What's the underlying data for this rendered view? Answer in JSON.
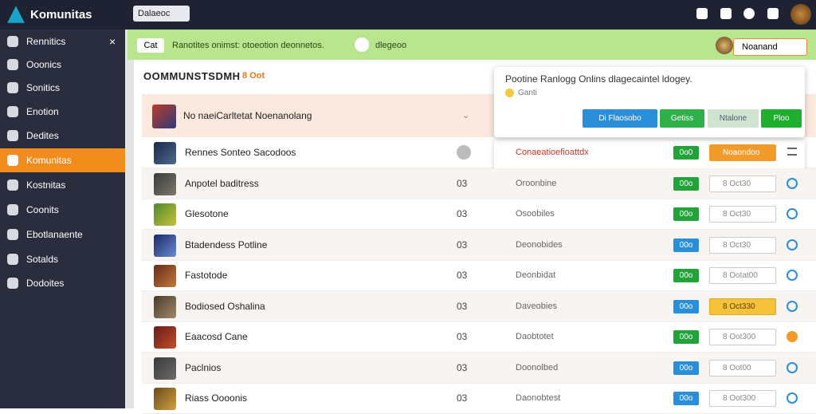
{
  "top_bar": {
    "logo": "Komunitas",
    "dropdown": "Dalaeoc"
  },
  "sidebar": {
    "items": [
      "Rennitics",
      "Ooonics",
      "Sonitics",
      "Enotion",
      "Dedites",
      "Komunitas",
      "Kostnitas",
      "Coonits",
      "Ebotlanaente",
      "Sotalds",
      "Dodoites"
    ]
  },
  "notice_bar": {
    "button": "Cat",
    "message": "Ranotites onimst: otoeotion deonnetos.",
    "link": "dlegeoo",
    "user": "Noanand"
  },
  "section": {
    "title": "OOMMUNSTSDMH",
    "tag": "8 Oot"
  },
  "popup": {
    "text": "Pootine Ranlogg Onlins dlagecaintel ldogey.",
    "note": "Ganti",
    "buttons": [
      "Di Flaosobo",
      "Getiss",
      "Ntalone",
      "Ploo"
    ]
  },
  "table": {
    "featured": "No naeiCarltetat Noenanolang",
    "rows": [
      {
        "name": "Rennes Sonteo Sacodoos",
        "status": "Conaeatioefioattdx",
        "badge": "0o0",
        "action": "Noaondoo"
      },
      {
        "name": "Anpotel baditress",
        "count": "03",
        "status": "Oroonbine",
        "badge": "00o",
        "action": "8 Oct30"
      },
      {
        "name": "Glesotone",
        "count": "03",
        "status": "Osoobiles",
        "badge": "00o",
        "action": "8 Oct30"
      },
      {
        "name": "Btadendess Potline",
        "count": "03",
        "status": "Deonobides",
        "badge": "00o",
        "action": "8 Oct30"
      },
      {
        "name": "Fastotode",
        "count": "03",
        "status": "Deonbidat",
        "badge": "00o",
        "action": "8 Ootat00"
      },
      {
        "name": "Bodiosed Oshalina",
        "count": "03",
        "status": "Daveobies",
        "badge": "00o",
        "action": "8 Oct330"
      },
      {
        "name": "Eaacosd Cane",
        "count": "03",
        "status": "Daobtotet",
        "badge": "00o",
        "action": "8 Oot300"
      },
      {
        "name": "Paclnios",
        "count": "03",
        "status": "Doonolbed",
        "badge": "00o",
        "action": "8 Oot00"
      },
      {
        "name": "Riass Oooonis",
        "count": "03",
        "status": "Daonobtest",
        "badge": "00o",
        "action": "8 Oot300"
      }
    ]
  }
}
